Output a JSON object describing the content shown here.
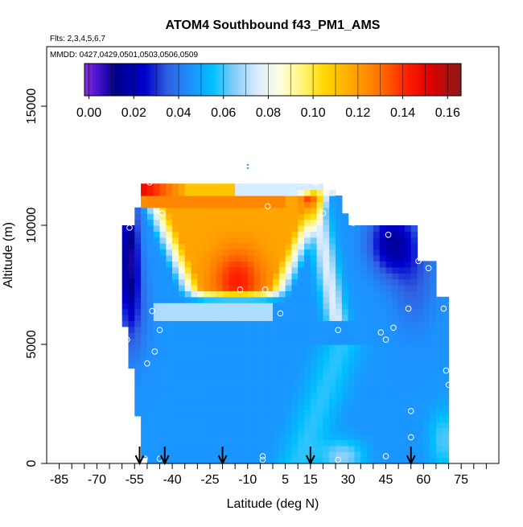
{
  "chart_data": {
    "type": "heatmap",
    "title": "ATOM4 Southbound f43_PM1_AMS",
    "subtitle": "Flts: 2,3,4,5,6,7",
    "annotation": "MMDD: 0427,0429,0501,0503,0506,0509",
    "xlabel": "Latitude (deg N)",
    "ylabel": "Altitude (m)",
    "xlim": [
      -90,
      90
    ],
    "ylim": [
      0,
      17500
    ],
    "x_ticks": [
      -85,
      -80,
      -75,
      -70,
      -65,
      -60,
      -55,
      -50,
      -45,
      -40,
      -35,
      -30,
      -25,
      -20,
      -15,
      -10,
      -5,
      0,
      5,
      10,
      15,
      20,
      25,
      30,
      35,
      40,
      45,
      50,
      55,
      60,
      65,
      70,
      75,
      80,
      85
    ],
    "x_tick_labels": [
      "-85",
      "-70",
      "-55",
      "-40",
      "-25",
      "-10",
      "5",
      "15",
      "30",
      "45",
      "60",
      "75"
    ],
    "x_tick_label_values": [
      -85,
      -70,
      -55,
      -40,
      -25,
      -10,
      5,
      15,
      30,
      45,
      60,
      75
    ],
    "y_ticks": [
      0,
      5000,
      10000,
      15000
    ],
    "y_tick_labels": [
      "0",
      "5000",
      "10000",
      "15000"
    ],
    "colorbar": {
      "ticks": [
        0.0,
        0.02,
        0.04,
        0.06,
        0.08,
        0.1,
        0.12,
        0.14,
        0.16
      ],
      "tick_labels": [
        "0.00",
        "0.02",
        "0.04",
        "0.06",
        "0.08",
        "0.10",
        "0.12",
        "0.14",
        "0.16"
      ],
      "range": [
        -0.002,
        0.166
      ],
      "stops": [
        {
          "v": -0.002,
          "c": "#8a2be2"
        },
        {
          "v": 0.005,
          "c": "#3a10c8"
        },
        {
          "v": 0.012,
          "c": "#00008b"
        },
        {
          "v": 0.025,
          "c": "#0000cd"
        },
        {
          "v": 0.035,
          "c": "#3060e0"
        },
        {
          "v": 0.045,
          "c": "#1e90ff"
        },
        {
          "v": 0.055,
          "c": "#00bfff"
        },
        {
          "v": 0.065,
          "c": "#87cefa"
        },
        {
          "v": 0.075,
          "c": "#d8ecff"
        },
        {
          "v": 0.085,
          "c": "#fffde0"
        },
        {
          "v": 0.095,
          "c": "#fff57a"
        },
        {
          "v": 0.105,
          "c": "#ffd700"
        },
        {
          "v": 0.118,
          "c": "#ffa500"
        },
        {
          "v": 0.13,
          "c": "#ff7000"
        },
        {
          "v": 0.142,
          "c": "#ff2000"
        },
        {
          "v": 0.152,
          "c": "#e00000"
        },
        {
          "v": 0.166,
          "c": "#8b1a1a"
        }
      ]
    },
    "blank_value": 0.05,
    "blank_color": "#ffffff",
    "data_extent_latitude": [
      -59,
      70
    ],
    "data_extent_altitude": [
      0,
      11800
    ],
    "field_features": [
      {
        "name": "background",
        "lat": [
          -59,
          70
        ],
        "alt": [
          0,
          11800
        ],
        "value": 0.045
      },
      {
        "name": "plume-core",
        "lat": [
          -22,
          -9
        ],
        "alt": [
          7000,
          8500
        ],
        "value": 0.14
      },
      {
        "name": "plume-top",
        "lat": [
          -52,
          -30
        ],
        "alt": [
          11400,
          11800
        ],
        "value": 0.15
      },
      {
        "name": "plume-body",
        "lat": [
          -45,
          5
        ],
        "alt": [
          6800,
          11000
        ],
        "value": 0.115
      },
      {
        "name": "polar-south-low",
        "lat": [
          -59,
          -52
        ],
        "alt": [
          7500,
          10000
        ],
        "value": 0.01
      },
      {
        "name": "arctic-low",
        "lat": [
          40,
          55
        ],
        "alt": [
          8500,
          10000
        ],
        "value": 0.02
      }
    ],
    "sample_points": [
      {
        "lat": -49,
        "alt": 11800
      },
      {
        "lat": -44,
        "alt": 10500
      },
      {
        "lat": -57,
        "alt": 9900
      },
      {
        "lat": -13,
        "alt": 7300
      },
      {
        "lat": -3,
        "alt": 7300
      },
      {
        "lat": 3,
        "alt": 6300
      },
      {
        "lat": -48,
        "alt": 6400
      },
      {
        "lat": -45,
        "alt": 5600
      },
      {
        "lat": -58,
        "alt": 5200
      },
      {
        "lat": -47,
        "alt": 4700
      },
      {
        "lat": -50,
        "alt": 4200
      },
      {
        "lat": -2,
        "alt": 10800
      },
      {
        "lat": 17,
        "alt": 11800
      },
      {
        "lat": 20,
        "alt": 10500
      },
      {
        "lat": 32,
        "alt": 10100
      },
      {
        "lat": 46,
        "alt": 9600
      },
      {
        "lat": 58,
        "alt": 8500
      },
      {
        "lat": 62,
        "alt": 8200
      },
      {
        "lat": 26,
        "alt": 5600
      },
      {
        "lat": 43,
        "alt": 5500
      },
      {
        "lat": 45,
        "alt": 5200
      },
      {
        "lat": 48,
        "alt": 5700
      },
      {
        "lat": 54,
        "alt": 6500
      },
      {
        "lat": 68,
        "alt": 6500
      },
      {
        "lat": 69,
        "alt": 3900
      },
      {
        "lat": 70,
        "alt": 3300
      },
      {
        "lat": 55,
        "alt": 2200
      },
      {
        "lat": 55,
        "alt": 1100
      },
      {
        "lat": -4,
        "alt": 300
      },
      {
        "lat": -4,
        "alt": 150
      },
      {
        "lat": 26,
        "alt": 150
      },
      {
        "lat": 45,
        "alt": 300
      },
      {
        "lat": -51,
        "alt": 200
      },
      {
        "lat": -45,
        "alt": 200
      }
    ],
    "flight_markers_latitude": [
      -53,
      -43,
      -20,
      15,
      55
    ],
    "marker_near_top": {
      "lat": -10,
      "alt": 12300
    }
  }
}
